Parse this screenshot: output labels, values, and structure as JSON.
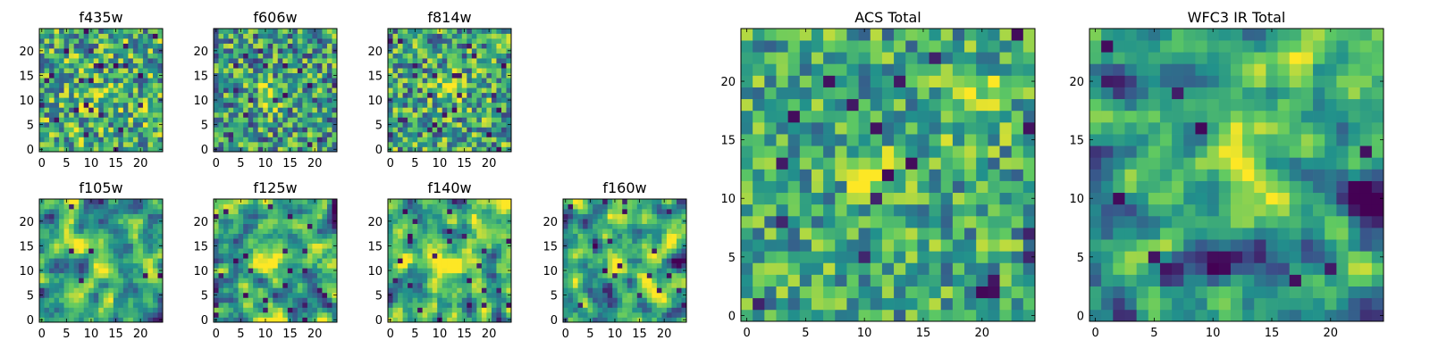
{
  "colormap": [
    "#440154",
    "#3b528b",
    "#21918c",
    "#5ec962",
    "#fde725"
  ],
  "colormap_name": "viridis",
  "chart_data": [
    {
      "type": "heatmap",
      "title": "f435w",
      "grid": false,
      "xlim": [
        0,
        24
      ],
      "ylim": [
        0,
        24
      ],
      "xticks": [
        0,
        5,
        10,
        15,
        20
      ],
      "yticks": [
        0,
        5,
        10,
        15,
        20
      ],
      "cells": [
        25,
        25
      ],
      "seed": 11,
      "base": 0.62,
      "blur": 0,
      "noise": 0.38,
      "dark_fraction": 0.04,
      "blobs": [
        [
          11,
          11,
          2.5,
          0.15
        ]
      ]
    },
    {
      "type": "heatmap",
      "title": "f606w",
      "grid": false,
      "xlim": [
        0,
        24
      ],
      "ylim": [
        0,
        24
      ],
      "xticks": [
        0,
        5,
        10,
        15,
        20
      ],
      "yticks": [
        0,
        5,
        10,
        15,
        20
      ],
      "cells": [
        25,
        25
      ],
      "seed": 23,
      "base": 0.55,
      "blur": 0,
      "noise": 0.38,
      "dark_fraction": 0.03,
      "blobs": [
        [
          11,
          11,
          2.0,
          0.35
        ]
      ]
    },
    {
      "type": "heatmap",
      "title": "f814w",
      "grid": false,
      "xlim": [
        0,
        24
      ],
      "ylim": [
        0,
        24
      ],
      "xticks": [
        0,
        5,
        10,
        15,
        20
      ],
      "yticks": [
        0,
        5,
        10,
        15,
        20
      ],
      "cells": [
        25,
        25
      ],
      "seed": 37,
      "base": 0.58,
      "blur": 0,
      "noise": 0.38,
      "dark_fraction": 0.03,
      "blobs": [
        [
          12,
          12,
          2.0,
          0.3
        ]
      ]
    },
    {
      "type": "heatmap",
      "title": "f105w",
      "grid": false,
      "xlim": [
        0,
        24
      ],
      "ylim": [
        0,
        24
      ],
      "xticks": [
        0,
        5,
        10,
        15,
        20
      ],
      "yticks": [
        0,
        5,
        10,
        15,
        20
      ],
      "cells": [
        25,
        25
      ],
      "seed": 41,
      "base": 0.58,
      "blur": 1,
      "noise": 0.45,
      "dark_fraction": 0.02,
      "blobs": [
        [
          12,
          11,
          2.5,
          0.35
        ],
        [
          8,
          11,
          1.2,
          -0.5
        ],
        [
          2,
          21,
          1.0,
          -0.6
        ]
      ]
    },
    {
      "type": "heatmap",
      "title": "f125w",
      "grid": false,
      "xlim": [
        0,
        24
      ],
      "ylim": [
        0,
        24
      ],
      "xticks": [
        0,
        5,
        10,
        15,
        20
      ],
      "yticks": [
        0,
        5,
        10,
        15,
        20
      ],
      "cells": [
        25,
        25
      ],
      "seed": 53,
      "base": 0.6,
      "blur": 1,
      "noise": 0.5,
      "dark_fraction": 0.03,
      "blobs": [
        [
          11,
          12,
          2.5,
          0.25
        ]
      ]
    },
    {
      "type": "heatmap",
      "title": "f140w",
      "grid": false,
      "xlim": [
        0,
        24
      ],
      "ylim": [
        0,
        24
      ],
      "xticks": [
        0,
        5,
        10,
        15,
        20
      ],
      "yticks": [
        0,
        5,
        10,
        15,
        20
      ],
      "cells": [
        25,
        25
      ],
      "seed": 67,
      "base": 0.62,
      "blur": 1,
      "noise": 0.5,
      "dark_fraction": 0.03,
      "blobs": [
        [
          12,
          12,
          2.5,
          0.3
        ],
        [
          21,
          21,
          3.0,
          0.2
        ]
      ]
    },
    {
      "type": "heatmap",
      "title": "f160w",
      "grid": false,
      "xlim": [
        0,
        24
      ],
      "ylim": [
        0,
        24
      ],
      "xticks": [
        0,
        5,
        10,
        15,
        20
      ],
      "yticks": [
        0,
        5,
        10,
        15,
        20
      ],
      "cells": [
        25,
        25
      ],
      "seed": 79,
      "base": 0.6,
      "blur": 1,
      "noise": 0.5,
      "dark_fraction": 0.02,
      "blobs": [
        [
          11,
          12,
          2.5,
          0.3
        ],
        [
          23,
          11,
          1.2,
          -0.55
        ],
        [
          6,
          15,
          1.0,
          -0.6
        ]
      ]
    },
    {
      "type": "heatmap",
      "title": "ACS Total",
      "grid": false,
      "xlim": [
        0,
        24
      ],
      "ylim": [
        0,
        24
      ],
      "xticks": [
        0,
        5,
        10,
        15,
        20
      ],
      "yticks": [
        0,
        5,
        10,
        15,
        20
      ],
      "cells": [
        25,
        25
      ],
      "seed": 97,
      "base": 0.6,
      "blur": 0,
      "noise": 0.3,
      "dark_fraction": 0.035,
      "blobs": [
        [
          11,
          12,
          1.6,
          0.35
        ],
        [
          19,
          18,
          2.0,
          0.3
        ]
      ]
    },
    {
      "type": "heatmap",
      "title": "WFC3 IR Total",
      "grid": false,
      "xlim": [
        0,
        24
      ],
      "ylim": [
        0,
        24
      ],
      "xticks": [
        0,
        5,
        10,
        15,
        20
      ],
      "yticks": [
        0,
        5,
        10,
        15,
        20
      ],
      "cells": [
        25,
        25
      ],
      "seed": 131,
      "base": 0.55,
      "blur": 1,
      "noise": 0.45,
      "dark_fraction": 0.01,
      "blobs": [
        [
          12,
          12,
          2.5,
          0.45
        ],
        [
          23,
          10,
          1.3,
          -0.7
        ],
        [
          22,
          22,
          3.0,
          0.3
        ],
        [
          1,
          20,
          1.2,
          -0.5
        ],
        [
          6,
          4,
          1.0,
          -0.6
        ],
        [
          10,
          4,
          1.0,
          -0.6
        ],
        [
          1,
          8,
          1.2,
          -0.5
        ]
      ]
    }
  ]
}
